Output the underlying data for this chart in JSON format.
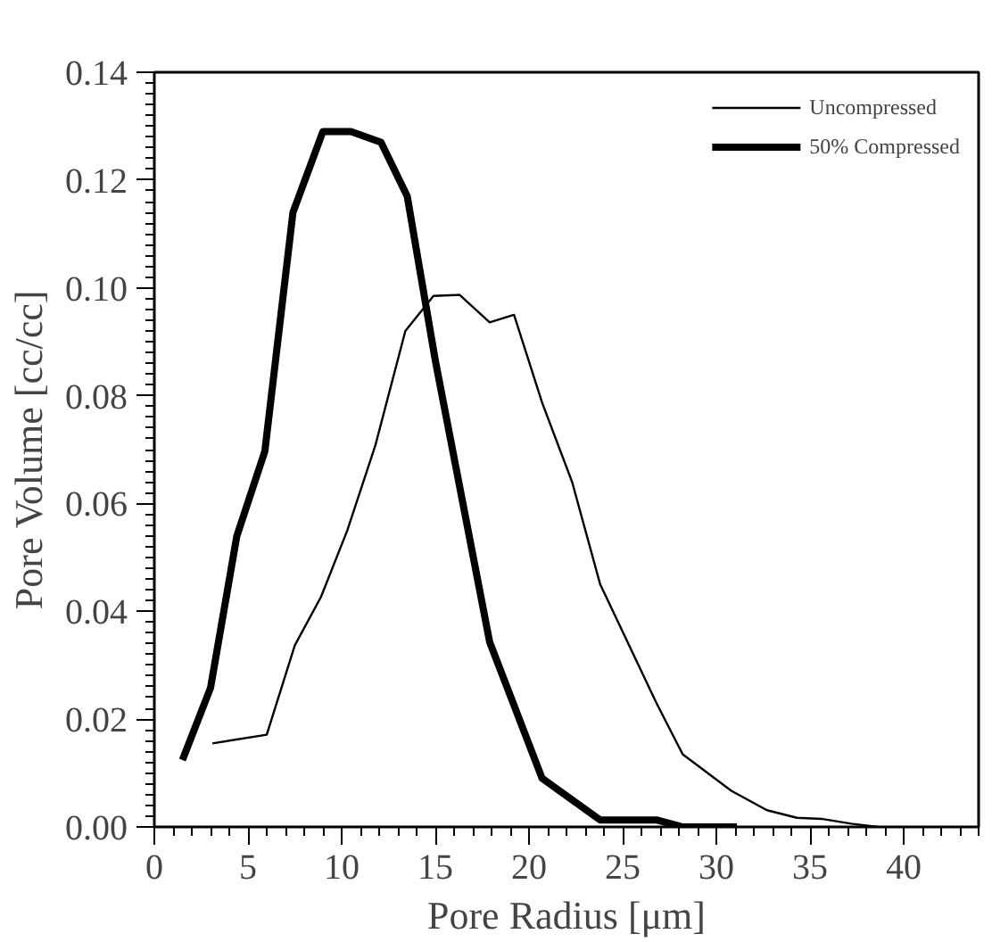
{
  "chart_data": {
    "type": "line",
    "xlabel": "Pore Radius [μm]",
    "ylabel": "Pore Volume [cc/cc]",
    "xlim": [
      0,
      44
    ],
    "ylim": [
      0,
      0.14
    ],
    "xticks": [
      0,
      5,
      10,
      15,
      20,
      25,
      30,
      35,
      40
    ],
    "yticks": [
      {
        "value": 0,
        "label": "0.00"
      },
      {
        "value": 0.02,
        "label": "0.02"
      },
      {
        "value": 0.04,
        "label": "0.04"
      },
      {
        "value": 0.06,
        "label": "0.06"
      },
      {
        "value": 0.08,
        "label": "0.08"
      },
      {
        "value": 0.1,
        "label": "0.10"
      },
      {
        "value": 0.12,
        "label": "0.12"
      },
      {
        "value": 0.14,
        "label": "0.14"
      }
    ],
    "grid": false,
    "legend": "top right",
    "marker": "none",
    "line_style": "solid",
    "series": [
      {
        "name": "Uncompressed",
        "color": "#000000",
        "x": [
          3.1,
          6.0,
          7.5,
          8.9,
          10.3,
          11.8,
          13.4,
          14.9,
          16.3,
          17.9,
          19.2,
          20.7,
          22.3,
          23.8,
          26.8,
          28.2,
          30.8,
          32.7,
          34.3,
          35.6,
          37.2,
          38.6
        ],
        "values": [
          0.0155,
          0.0171,
          0.0337,
          0.0427,
          0.055,
          0.0708,
          0.092,
          0.0985,
          0.0987,
          0.0936,
          0.095,
          0.0787,
          0.064,
          0.045,
          0.023,
          0.0135,
          0.0067,
          0.0031,
          0.0017,
          0.0015,
          0.0006,
          0.0
        ]
      },
      {
        "name": "50% Compressed",
        "color": "#000000",
        "x": [
          1.5,
          3.0,
          4.4,
          5.9,
          7.4,
          9.0,
          10.5,
          12.1,
          13.5,
          15.0,
          17.9,
          20.7,
          23.8,
          26.8,
          28.2,
          31.1
        ],
        "values": [
          0.0124,
          0.0258,
          0.0539,
          0.0697,
          0.114,
          0.129,
          0.129,
          0.127,
          0.117,
          0.0865,
          0.0343,
          0.009,
          0.0013,
          0.0013,
          0.0,
          0.0
        ]
      }
    ]
  }
}
